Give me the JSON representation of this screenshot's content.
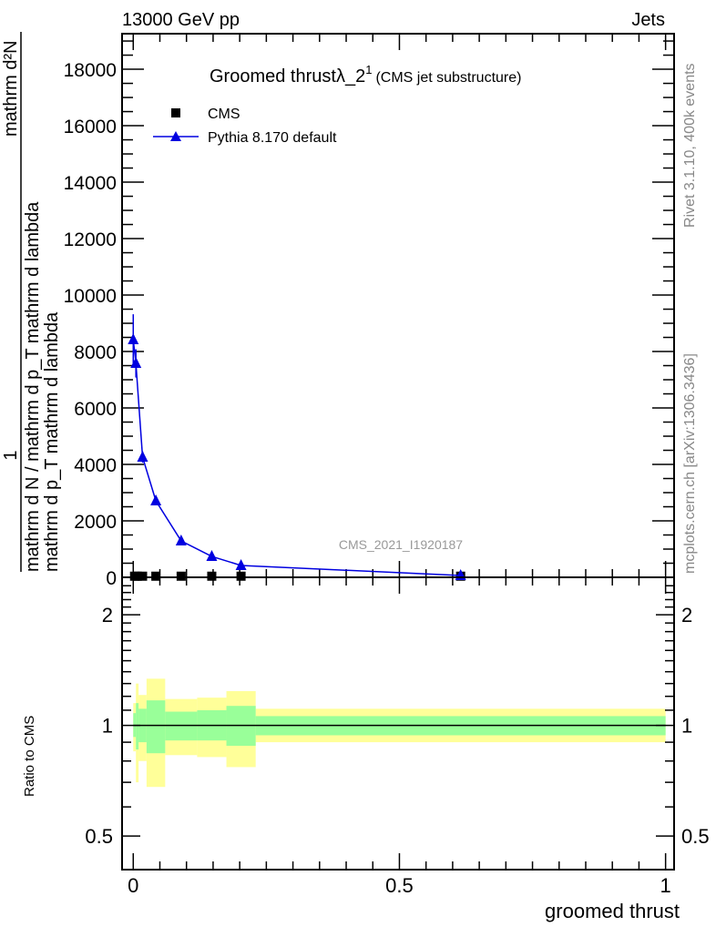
{
  "header": {
    "left": "13000 GeV pp",
    "right": "Jets",
    "title_main": "Groomed thrustλ_2",
    "title_sup": "1",
    "title_sub": "(CMS jet substructure)"
  },
  "side": {
    "rivet": "Rivet 3.1.10,  400k events",
    "mcplots": "mcplots.cern.ch [arXiv:1306.3436]"
  },
  "watermark": "CMS_2021_I1920187",
  "ylabel_parts": {
    "num1": "1",
    "den1": "mathrm d N / mathrm d p_T mathrm d lambda",
    "num2": "mathrm d²N",
    "den2": "mathrm d p_T mathrm d lambda"
  },
  "colors": {
    "mc": "#0000e0",
    "data": "#000000",
    "band_outer": "#ffff99",
    "band_inner": "#99ff99"
  },
  "chart_data": [
    {
      "type": "line",
      "title": "Groomed thrustλ_2^1 (CMS jet substructure)",
      "xlabel": "groomed thrust",
      "ylabel": "1/N dN/dp_T dlambda",
      "xlim": [
        -0.021,
        1.016
      ],
      "ylim": [
        0,
        19260
      ],
      "yticks": [
        "0",
        "2000",
        "4000",
        "6000",
        "8000",
        "10000",
        "12000",
        "14000",
        "16000",
        "18000"
      ],
      "xticks": [
        "0",
        "0.5",
        "1"
      ],
      "legend": {
        "position": "top-left",
        "entries": [
          "CMS",
          "Pythia 8.170 default"
        ]
      },
      "bin_edges": [
        0,
        0.005,
        0.01,
        0.025,
        0.06,
        0.12,
        0.175,
        0.23,
        1.0
      ],
      "series": [
        {
          "name": "CMS",
          "marker": "square",
          "x": [
            0.0025,
            0.0075,
            0.0175,
            0.0425,
            0.09,
            0.1475,
            0.2025,
            0.615
          ],
          "y": [
            40,
            40,
            40,
            40,
            40,
            40,
            40,
            40
          ]
        },
        {
          "name": "Pythia 8.170 default",
          "marker": "triangle",
          "x": [
            0.0,
            0.005,
            0.0175,
            0.0425,
            0.09,
            0.1475,
            0.2025,
            0.615
          ],
          "y": [
            8420,
            7580,
            4260,
            2710,
            1290,
            740,
            420,
            65
          ],
          "err": [
            900,
            500,
            200,
            120,
            60,
            40,
            30,
            10
          ]
        }
      ]
    },
    {
      "type": "area",
      "ylabel": "Ratio to CMS",
      "xlabel": "groomed thrust",
      "yscale": "log",
      "ylim": [
        0.405,
        2.53
      ],
      "yticks": [
        "0.5",
        "1",
        "2"
      ],
      "bin_edges": [
        0,
        0.005,
        0.01,
        0.025,
        0.06,
        0.12,
        0.175,
        0.23,
        1.0
      ],
      "outer_band": {
        "low": [
          0.85,
          0.7,
          0.8,
          0.68,
          0.83,
          0.82,
          0.77,
          0.9
        ],
        "high": [
          1.15,
          1.3,
          1.21,
          1.34,
          1.18,
          1.19,
          1.24,
          1.11
        ]
      },
      "inner_band": {
        "low": [
          0.93,
          0.86,
          0.9,
          0.84,
          0.91,
          0.91,
          0.88,
          0.94
        ],
        "high": [
          1.08,
          1.15,
          1.11,
          1.17,
          1.09,
          1.1,
          1.13,
          1.06
        ]
      },
      "reference": 1
    }
  ]
}
